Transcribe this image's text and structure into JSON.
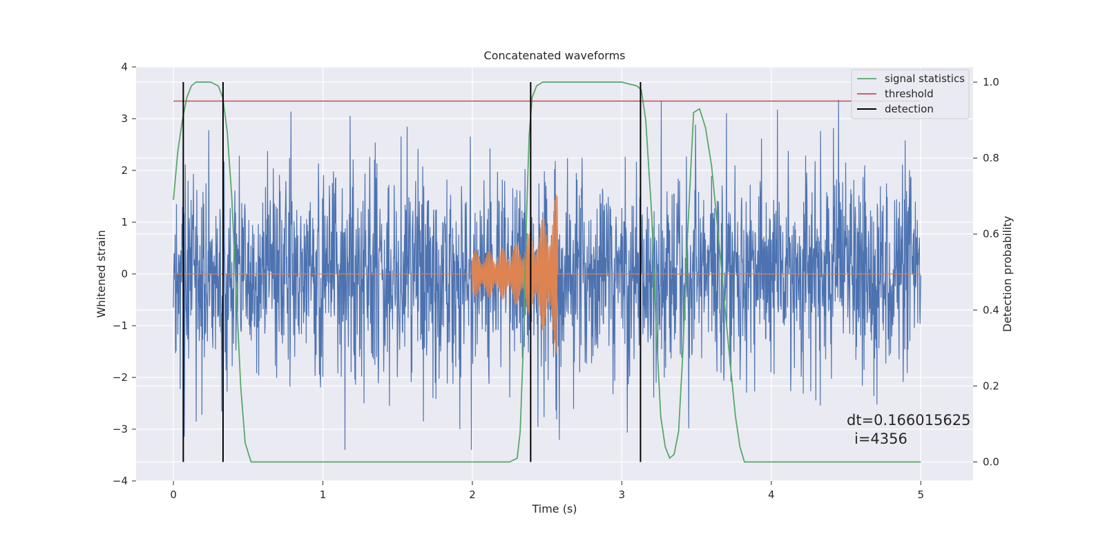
{
  "chart_data": {
    "type": "line",
    "title": "Concatenated waveforms",
    "xlabel": "Time (s)",
    "ylabel": "Whitened strain",
    "y2label": "Detection probability",
    "xlim": [
      -0.25,
      5.35
    ],
    "ylim": [
      -4,
      4
    ],
    "y2lim": [
      -0.05,
      1.04
    ],
    "xticks": [
      0,
      1,
      2,
      3,
      4,
      5
    ],
    "yticks": [
      -4,
      -3,
      -2,
      -1,
      0,
      1,
      2,
      3,
      4
    ],
    "y2ticks": [
      0.0,
      0.2,
      0.4,
      0.6,
      0.8,
      1.0
    ],
    "grid": true,
    "legend_position": "top-right",
    "colors": {
      "background": "#eaeaf2",
      "grid": "#ffffff",
      "strain": "#4c72b0",
      "template": "#dd8452",
      "signal_statistics": "#55a868",
      "threshold": "#c44e52",
      "detection": "#000000"
    },
    "series": [
      {
        "name": "signal statistics",
        "axis": "right",
        "x": [
          0.0,
          0.03,
          0.06,
          0.09,
          0.12,
          0.15,
          0.2,
          0.25,
          0.3,
          0.33,
          0.36,
          0.39,
          0.42,
          0.45,
          0.48,
          0.52,
          0.6,
          1.0,
          1.5,
          2.0,
          2.25,
          2.3,
          2.32,
          2.34,
          2.36,
          2.38,
          2.4,
          2.43,
          2.47,
          2.6,
          3.0,
          3.1,
          3.13,
          3.16,
          3.2,
          3.23,
          3.26,
          3.29,
          3.32,
          3.35,
          3.38,
          3.41,
          3.44,
          3.48,
          3.52,
          3.56,
          3.6,
          3.64,
          3.68,
          3.72,
          3.76,
          3.79,
          3.82,
          3.9,
          4.5,
          5.0
        ],
        "y": [
          0.69,
          0.82,
          0.9,
          0.96,
          0.99,
          1.0,
          1.0,
          1.0,
          0.99,
          0.96,
          0.87,
          0.7,
          0.45,
          0.2,
          0.05,
          0.0,
          0.0,
          0.0,
          0.0,
          0.0,
          0.0,
          0.01,
          0.08,
          0.3,
          0.62,
          0.86,
          0.96,
          0.99,
          1.0,
          1.0,
          1.0,
          0.99,
          0.98,
          0.9,
          0.65,
          0.35,
          0.12,
          0.04,
          0.01,
          0.02,
          0.08,
          0.3,
          0.6,
          0.92,
          0.93,
          0.88,
          0.78,
          0.62,
          0.45,
          0.28,
          0.12,
          0.04,
          0.0,
          0.0,
          0.0,
          0.0
        ]
      },
      {
        "name": "threshold",
        "axis": "right",
        "x": [
          0.0,
          5.0
        ],
        "y": [
          0.95,
          0.95
        ]
      },
      {
        "name": "detection",
        "axis": "right",
        "type": "vlines",
        "x": [
          0.066,
          0.332,
          2.39,
          3.125
        ],
        "ymin": 0.0,
        "ymax": 1.0
      },
      {
        "name": "",
        "axis": "left",
        "kind": "whitened strain noise",
        "x_range": [
          0.0,
          5.0
        ],
        "envelope": [
          -2.5,
          3.0
        ]
      },
      {
        "name": "",
        "axis": "left",
        "kind": "chirp template",
        "x_range": [
          2.0,
          2.57
        ],
        "amplitude_range": [
          0.45,
          1.6
        ]
      }
    ],
    "annotations": [
      "dt=0.166015625",
      "i=4356"
    ]
  }
}
